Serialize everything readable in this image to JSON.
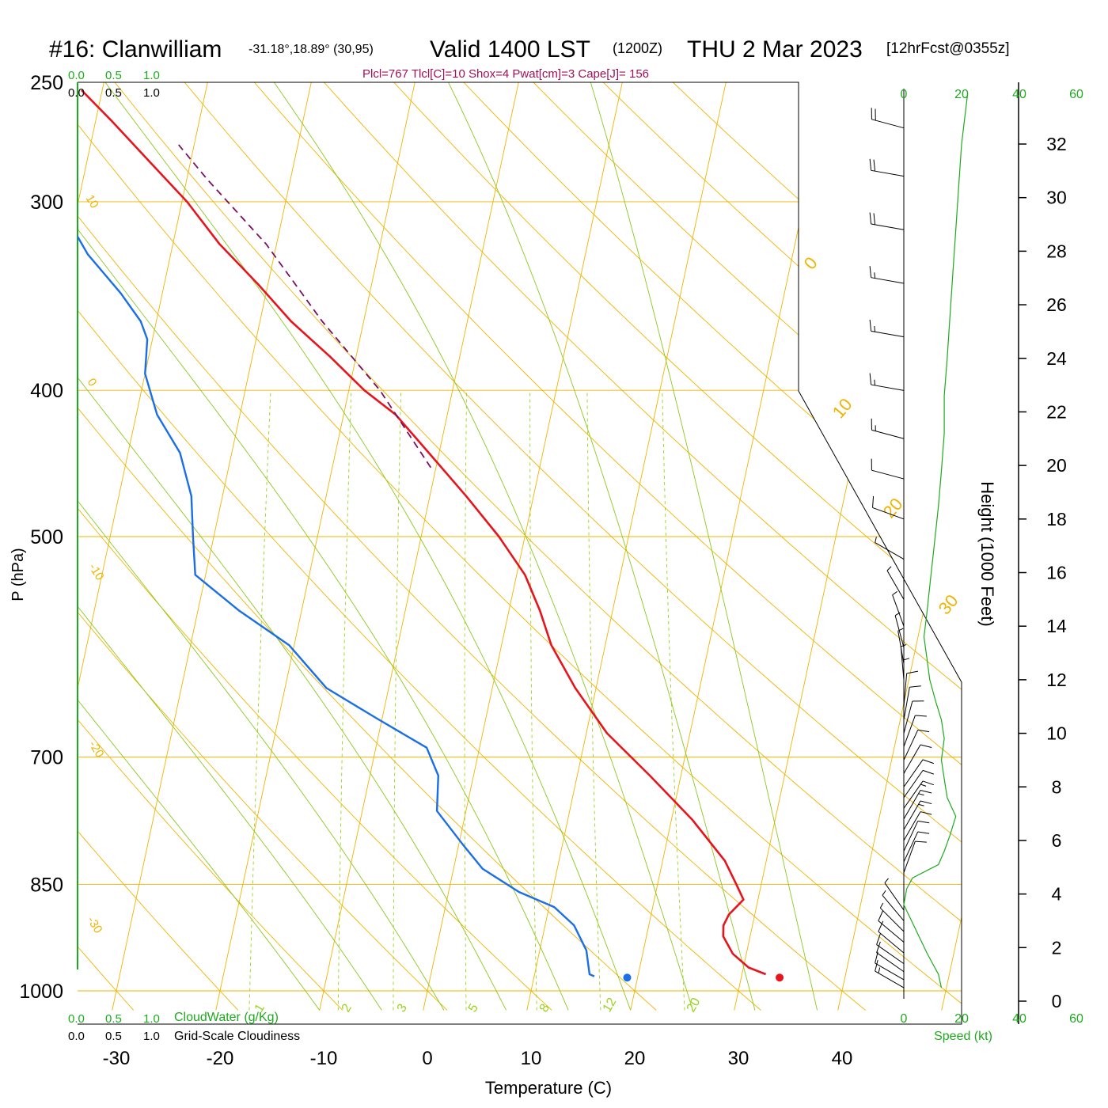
{
  "header": {
    "station": "#16: Clanwilliam",
    "coords": "-31.18°,18.89° (30,95)",
    "valid": "Valid 1400 LST",
    "zulu": "(1200Z)",
    "date": "THU 2 Mar 2023",
    "forecast": "[12hrFcst@0355z]",
    "indices": "Plcl=767 Tlcl[C]=10 Shox=4 Pwat[cm]=3 Cape[J]= 156"
  },
  "colors": {
    "temperature": "#e8141c",
    "dewpoint": "#1a6ee8",
    "parcel": "#7a1060",
    "isobar": "#f0b400",
    "dry_adiabat": "#f0b400",
    "moist_adiabat": "#8cc81e",
    "mixing_ratio": "#9ad21e",
    "cloud_green": "#1eaa1e",
    "indices_text": "#a0105a"
  },
  "chart_data": {
    "type": "line",
    "subtype": "skew-t log-p",
    "xlabel": "Temperature (C)",
    "ylabel": "P (hPa)",
    "y2label": "Height (1000 Feet)",
    "xlim": [
      -34,
      36
    ],
    "ylim": [
      1030,
      250
    ],
    "x_ticks": [
      -30,
      -20,
      -10,
      0,
      10,
      20,
      30,
      40
    ],
    "p_ticks": [
      250,
      300,
      400,
      500,
      700,
      850,
      1000
    ],
    "height_ticks": [
      0,
      2,
      4,
      6,
      8,
      10,
      12,
      14,
      16,
      18,
      20,
      22,
      24,
      26,
      28,
      30,
      32
    ],
    "dry_adiabat_labels": [
      "10",
      "0",
      "-10",
      "-20",
      "-30",
      "0",
      "10",
      "20",
      "30"
    ],
    "mixing_ratio_labels": [
      "1",
      "2",
      "3",
      "5",
      "8",
      "12",
      "20"
    ],
    "mixing_ratio_values": [
      1,
      2,
      3,
      5,
      8,
      12,
      20
    ],
    "series": [
      {
        "name": "temperature",
        "points": [
          [
            32.3,
            975
          ],
          [
            30.5,
            965
          ],
          [
            28.7,
            945
          ],
          [
            27.4,
            920
          ],
          [
            27.2,
            905
          ],
          [
            27.5,
            890
          ],
          [
            28.6,
            870
          ],
          [
            27.6,
            850
          ],
          [
            26.0,
            820
          ],
          [
            22.0,
            770
          ],
          [
            17.0,
            720
          ],
          [
            12.0,
            675
          ],
          [
            8.0,
            630
          ],
          [
            4.8,
            590
          ],
          [
            3.0,
            560
          ],
          [
            0.8,
            530
          ],
          [
            -2.5,
            500
          ],
          [
            -6.5,
            470
          ],
          [
            -11.0,
            440
          ],
          [
            -15.0,
            415
          ],
          [
            -18.5,
            400
          ],
          [
            -22.5,
            380
          ],
          [
            -27.0,
            360
          ],
          [
            -31.0,
            340
          ],
          [
            -35.5,
            320
          ],
          [
            -39.5,
            300
          ],
          [
            -44.0,
            282
          ],
          [
            -48.5,
            265
          ],
          [
            -52.0,
            253
          ]
        ]
      },
      {
        "name": "dewpoint",
        "points": [
          [
            15.8,
            978
          ],
          [
            15.3,
            975
          ],
          [
            14.5,
            940
          ],
          [
            12.8,
            905
          ],
          [
            10.5,
            880
          ],
          [
            6.8,
            860
          ],
          [
            2.8,
            830
          ],
          [
            0.4,
            800
          ],
          [
            -2.8,
            760
          ],
          [
            -3.4,
            720
          ],
          [
            -5.1,
            690
          ],
          [
            -10.5,
            660
          ],
          [
            -16.0,
            630
          ],
          [
            -20.5,
            590
          ],
          [
            -26.0,
            560
          ],
          [
            -31.0,
            530
          ],
          [
            -32.0,
            500
          ],
          [
            -33.0,
            470
          ],
          [
            -35.0,
            440
          ],
          [
            -38.0,
            415
          ],
          [
            -40.0,
            390
          ],
          [
            -40.5,
            370
          ],
          [
            -41.5,
            360
          ],
          [
            -44.0,
            345
          ],
          [
            -48.0,
            325
          ],
          [
            -52.0,
            300
          ],
          [
            -56.0,
            280
          ],
          [
            -58.5,
            268
          ],
          [
            -60.0,
            253
          ]
        ]
      },
      {
        "name": "parcel",
        "points": [
          [
            -10.5,
            450
          ],
          [
            -17.0,
            400
          ],
          [
            -24.0,
            360
          ],
          [
            -31.0,
            320
          ],
          [
            -38.0,
            290
          ],
          [
            -41.5,
            275
          ]
        ]
      }
    ],
    "surface_points": [
      {
        "name": "temperature",
        "t": 33.7,
        "p": 980
      },
      {
        "name": "dewpoint",
        "t": 19.0,
        "p": 980
      }
    ],
    "cloud_axes": {
      "ticks": [
        "0.0",
        "0.5",
        "1.0"
      ],
      "label_top": "CloudWater (g/Kg)",
      "label_bottom": "Grid-Scale Cloudiness"
    },
    "wind_speed_axis": {
      "label": "Speed (kt)",
      "ticks": [
        "0",
        "20",
        "40",
        "60"
      ],
      "profile": [
        [
          13,
          0.5
        ],
        [
          12,
          1.0
        ],
        [
          8,
          1.8
        ],
        [
          4,
          2.7
        ],
        [
          0,
          3.6
        ],
        [
          1,
          4.2
        ],
        [
          3,
          4.6
        ],
        [
          12,
          5.1
        ],
        [
          14,
          5.6
        ],
        [
          16,
          6.2
        ],
        [
          18,
          6.9
        ],
        [
          15,
          7.6
        ],
        [
          14,
          8.3
        ],
        [
          13,
          9.0
        ],
        [
          14,
          9.8
        ],
        [
          13,
          10.5
        ],
        [
          11,
          11.2
        ],
        [
          9,
          12.0
        ],
        [
          8,
          12.8
        ],
        [
          7,
          13.6
        ],
        [
          8,
          14.5
        ],
        [
          9,
          15.5
        ],
        [
          10,
          16.5
        ],
        [
          11,
          17.5
        ],
        [
          12,
          18.5
        ],
        [
          13,
          19.8
        ],
        [
          14,
          21.2
        ],
        [
          14,
          22.6
        ],
        [
          15,
          24.0
        ],
        [
          16,
          25.6
        ],
        [
          17,
          27.2
        ],
        [
          18,
          28.8
        ],
        [
          19,
          30.4
        ],
        [
          20,
          32.0
        ],
        [
          22,
          33.8
        ]
      ]
    },
    "wind_barbs": [
      {
        "h": 0.5,
        "dir": 300,
        "spd": 13
      },
      {
        "h": 0.8,
        "dir": 300,
        "spd": 12
      },
      {
        "h": 1.1,
        "dir": 305,
        "spd": 11
      },
      {
        "h": 1.4,
        "dir": 305,
        "spd": 10
      },
      {
        "h": 1.8,
        "dir": 310,
        "spd": 9
      },
      {
        "h": 2.2,
        "dir": 310,
        "spd": 8
      },
      {
        "h": 2.6,
        "dir": 315,
        "spd": 6
      },
      {
        "h": 3.0,
        "dir": 320,
        "spd": 5
      },
      {
        "h": 3.4,
        "dir": 325,
        "spd": 4
      },
      {
        "h": 4.8,
        "dir": 20,
        "spd": 8
      },
      {
        "h": 5.2,
        "dir": 25,
        "spd": 10
      },
      {
        "h": 5.6,
        "dir": 25,
        "spd": 11
      },
      {
        "h": 6.0,
        "dir": 30,
        "spd": 12
      },
      {
        "h": 6.4,
        "dir": 30,
        "spd": 13
      },
      {
        "h": 6.8,
        "dir": 30,
        "spd": 14
      },
      {
        "h": 7.2,
        "dir": 35,
        "spd": 13
      },
      {
        "h": 7.6,
        "dir": 35,
        "spd": 12
      },
      {
        "h": 8.0,
        "dir": 35,
        "spd": 12
      },
      {
        "h": 8.5,
        "dir": 30,
        "spd": 11
      },
      {
        "h": 9.0,
        "dir": 25,
        "spd": 10
      },
      {
        "h": 9.5,
        "dir": 20,
        "spd": 9
      },
      {
        "h": 10.0,
        "dir": 15,
        "spd": 9
      },
      {
        "h": 10.5,
        "dir": 10,
        "spd": 8
      },
      {
        "h": 11.0,
        "dir": 5,
        "spd": 8
      },
      {
        "h": 11.5,
        "dir": 0,
        "spd": 7
      },
      {
        "h": 12.0,
        "dir": 355,
        "spd": 7
      },
      {
        "h": 12.6,
        "dir": 350,
        "spd": 7
      },
      {
        "h": 13.2,
        "dir": 345,
        "spd": 6
      },
      {
        "h": 14.0,
        "dir": 340,
        "spd": 5
      },
      {
        "h": 15.0,
        "dir": 330,
        "spd": 5
      },
      {
        "h": 16.5,
        "dir": 300,
        "spd": 5
      },
      {
        "h": 18.0,
        "dir": 290,
        "spd": 10
      },
      {
        "h": 19.5,
        "dir": 285,
        "spd": 12
      },
      {
        "h": 21.0,
        "dir": 285,
        "spd": 14
      },
      {
        "h": 22.8,
        "dir": 280,
        "spd": 15
      },
      {
        "h": 24.8,
        "dir": 280,
        "spd": 16
      },
      {
        "h": 26.8,
        "dir": 280,
        "spd": 17
      },
      {
        "h": 28.8,
        "dir": 280,
        "spd": 18
      },
      {
        "h": 30.8,
        "dir": 280,
        "spd": 19
      },
      {
        "h": 32.6,
        "dir": 285,
        "spd": 20
      }
    ]
  }
}
